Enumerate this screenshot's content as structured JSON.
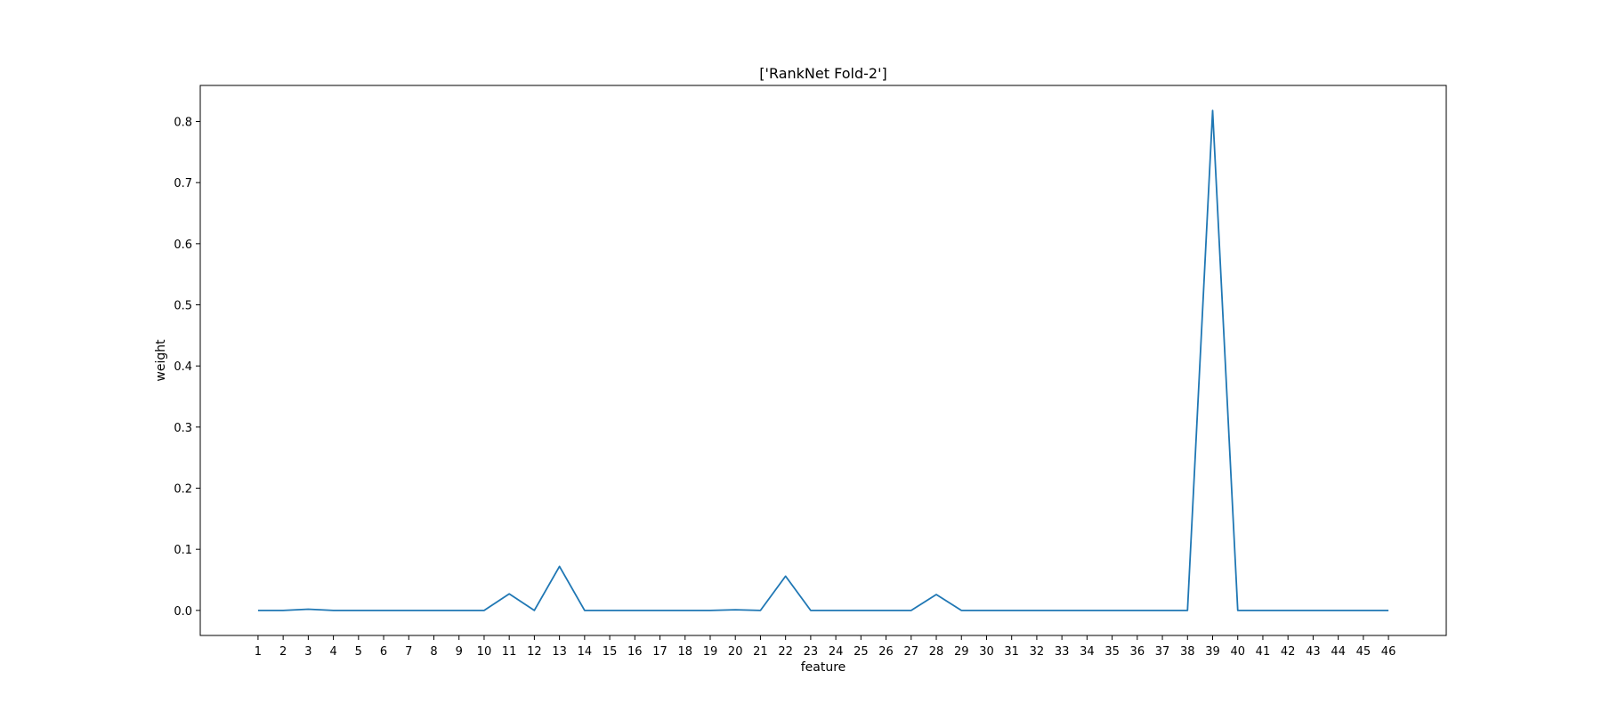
{
  "chart_data": {
    "type": "line",
    "title": "['RankNet Fold-2']",
    "xlabel": "feature",
    "ylabel": "weight",
    "x": [
      1,
      2,
      3,
      4,
      5,
      6,
      7,
      8,
      9,
      10,
      11,
      12,
      13,
      14,
      15,
      16,
      17,
      18,
      19,
      20,
      21,
      22,
      23,
      24,
      25,
      26,
      27,
      28,
      29,
      30,
      31,
      32,
      33,
      34,
      35,
      36,
      37,
      38,
      39,
      40,
      41,
      42,
      43,
      44,
      45,
      46
    ],
    "series": [
      {
        "color": "#1f77b4",
        "values": [
          0.0,
          0.0,
          0.002,
          0.0,
          0.0,
          0.0,
          0.0,
          0.0,
          0.0,
          0.0,
          0.027,
          0.0,
          0.072,
          0.0,
          0.0,
          0.0,
          0.0,
          0.0,
          0.0,
          0.001,
          0.0,
          0.056,
          0.0,
          0.0,
          0.0,
          0.0,
          0.0,
          0.026,
          0.0,
          0.0,
          0.0,
          0.0,
          0.0,
          0.0,
          0.0,
          0.0,
          0.0,
          0.0,
          0.818,
          0.0,
          0.0,
          0.0,
          0.0,
          0.0,
          0.0,
          0.0
        ]
      }
    ],
    "xlim": [
      -1.3,
      48.3
    ],
    "ylim": [
      -0.041,
      0.859
    ],
    "yticks": [
      0.0,
      0.1,
      0.2,
      0.3,
      0.4,
      0.5,
      0.6,
      0.7,
      0.8
    ],
    "ytick_labels": [
      "0.0",
      "0.1",
      "0.2",
      "0.3",
      "0.4",
      "0.5",
      "0.6",
      "0.7",
      "0.8"
    ],
    "grid": false,
    "legend": "none"
  }
}
